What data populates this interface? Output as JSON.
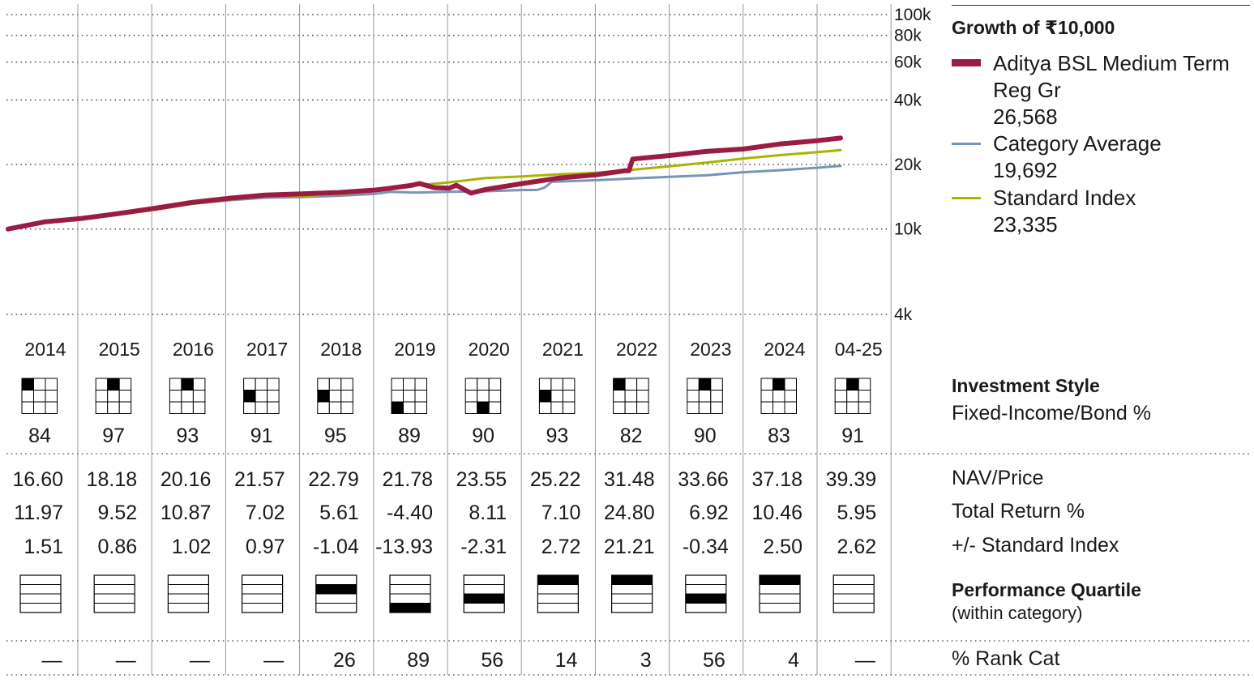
{
  "chart_data": {
    "type": "line",
    "title": "Growth of ₹10,000",
    "yscale": "log",
    "ylim": [
      4000,
      100000
    ],
    "y_ticks": [
      100000,
      80000,
      60000,
      40000,
      20000,
      10000,
      4000
    ],
    "y_tick_labels": [
      "100k",
      "80k",
      "60k",
      "40k",
      "20k",
      "10k",
      "4k"
    ],
    "grid": true,
    "legend_position": "right",
    "x_range": [
      2014.0,
      2025.33
    ],
    "series": [
      {
        "name": "Aditya BSL Medium Term Reg Gr",
        "end_value_label": "26,568",
        "color": "#9b1c43",
        "x": [
          2014.0,
          2014.5,
          2015.0,
          2015.5,
          2016.0,
          2016.5,
          2017.0,
          2017.5,
          2018.0,
          2018.5,
          2019.0,
          2019.2,
          2019.5,
          2019.6,
          2019.8,
          2020.0,
          2020.1,
          2020.3,
          2020.5,
          2021.0,
          2021.5,
          2022.0,
          2022.4,
          2022.45,
          2022.5,
          2023.0,
          2023.5,
          2024.0,
          2024.5,
          2025.0,
          2025.33
        ],
        "y": [
          10000,
          10800,
          11200,
          11800,
          12500,
          13300,
          13900,
          14400,
          14600,
          14800,
          15200,
          15500,
          16000,
          16300,
          15600,
          15500,
          16000,
          14700,
          15300,
          16300,
          17300,
          17900,
          18700,
          18700,
          21200,
          22000,
          23000,
          23600,
          24900,
          25800,
          26568
        ]
      },
      {
        "name": "Category Average",
        "end_value_label": "19,692",
        "color": "#7995b5",
        "x": [
          2014.0,
          2014.5,
          2015.0,
          2015.5,
          2016.0,
          2016.5,
          2017.0,
          2017.5,
          2018.0,
          2018.5,
          2019.0,
          2019.2,
          2019.5,
          2019.6,
          2020.0,
          2020.5,
          2021.0,
          2021.2,
          2021.3,
          2021.4,
          2021.6,
          2022.0,
          2022.5,
          2023.0,
          2023.5,
          2024.0,
          2024.5,
          2025.0,
          2025.33
        ],
        "y": [
          10000,
          10700,
          11100,
          11700,
          12300,
          13100,
          13600,
          14000,
          14100,
          14300,
          14600,
          14900,
          14800,
          14800,
          14900,
          15000,
          15200,
          15200,
          15600,
          16600,
          16700,
          16900,
          17200,
          17500,
          17800,
          18400,
          18800,
          19300,
          19692
        ]
      },
      {
        "name": "Standard Index",
        "end_value_label": "23,335",
        "color": "#a8b400",
        "x": [
          2014.0,
          2014.5,
          2015.0,
          2015.5,
          2016.0,
          2016.5,
          2017.0,
          2017.5,
          2018.0,
          2018.5,
          2019.0,
          2019.5,
          2020.0,
          2020.5,
          2021.0,
          2021.5,
          2022.0,
          2022.5,
          2023.0,
          2023.5,
          2024.0,
          2024.5,
          2025.0,
          2025.33
        ],
        "y": [
          10000,
          10800,
          11100,
          11700,
          12300,
          13100,
          13700,
          14200,
          14300,
          14500,
          15100,
          15900,
          16500,
          17300,
          17600,
          18000,
          18300,
          18900,
          19600,
          20400,
          21300,
          22100,
          22800,
          23335
        ]
      }
    ],
    "years": [
      "2014",
      "2015",
      "2016",
      "2017",
      "2018",
      "2019",
      "2020",
      "2021",
      "2022",
      "2023",
      "2024",
      "04-25"
    ],
    "style_box_index": [
      0,
      1,
      1,
      3,
      3,
      6,
      7,
      3,
      0,
      1,
      1,
      1
    ],
    "fixed_income_bond_pct": [
      "84",
      "97",
      "93",
      "91",
      "95",
      "89",
      "90",
      "93",
      "82",
      "90",
      "83",
      "91"
    ],
    "nav_price": [
      "16.60",
      "18.18",
      "20.16",
      "21.57",
      "22.79",
      "21.78",
      "23.55",
      "25.22",
      "31.48",
      "33.66",
      "37.18",
      "39.39"
    ],
    "total_return_pct": [
      "11.97",
      "9.52",
      "10.87",
      "7.02",
      "5.61",
      "-4.40",
      "8.11",
      "7.10",
      "24.80",
      "6.92",
      "10.46",
      "5.95"
    ],
    "vs_standard_index": [
      "1.51",
      "0.86",
      "1.02",
      "0.97",
      "-1.04",
      "-13.93",
      "-2.31",
      "2.72",
      "21.21",
      "-0.34",
      "2.50",
      "2.62"
    ],
    "performance_quartile": [
      0,
      0,
      0,
      0,
      2,
      4,
      3,
      1,
      1,
      3,
      1,
      0
    ],
    "pct_rank_cat": [
      "—",
      "—",
      "—",
      "—",
      "26",
      "89",
      "56",
      "14",
      "3",
      "56",
      "4",
      "—"
    ]
  },
  "labels": {
    "growth_title": "Growth of ₹10,000",
    "investment_style": "Investment Style",
    "fixed_income_bond": "Fixed-Income/Bond %",
    "nav_price": "NAV/Price",
    "total_return": "Total Return %",
    "vs_index": "+/- Standard Index",
    "performance_quartile": "Performance Quartile",
    "within_category": "(within category)",
    "rank_cat": "% Rank Cat"
  }
}
